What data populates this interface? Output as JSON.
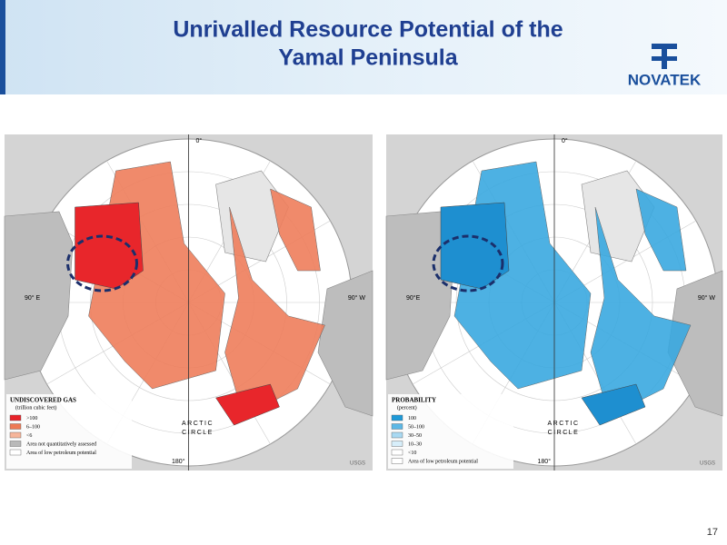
{
  "header": {
    "title": [
      "Unrivalled Resource Potential of the",
      "Yamal Peninsula"
    ],
    "logo": "NOVATEK"
  },
  "maps": [
    {
      "legend_title": "UNDISCOVERED GAS",
      "legend_unit": "(trillion cubic feet)",
      "legend_items": [
        ">100",
        "6–100",
        "<6",
        "Area not quantitatively assessed",
        "Area of low petroleum potential"
      ],
      "legend_colors": [
        "#e8232a",
        "#ee7a55",
        "#f6b59a",
        "#b9b9b9",
        "#ffffff"
      ],
      "zone_color": "#ef7e5c",
      "hot_color": "#e8262b",
      "labels": {
        "top": "0°",
        "left": "90° E",
        "right": "90° W",
        "bottom": "180°",
        "circle": [
          "ARCTIC",
          "CIRCLE"
        ],
        "source": "USGS"
      }
    },
    {
      "legend_title": "PROBABILITY",
      "legend_unit": "(percent)",
      "legend_items": [
        "100",
        "50–100",
        "30–50",
        "10–30",
        "<10",
        "Area of low petroleum potential"
      ],
      "legend_colors": [
        "#1e9ad8",
        "#5cb8e6",
        "#a9d9f2",
        "#d7eefa",
        "#ffffff",
        "#ffffff"
      ],
      "zone_color": "#3aa9e0",
      "hot_color": "#1e8fd0",
      "labels": {
        "top": "0°",
        "left": "90°E",
        "right": "90° W",
        "bottom": "180°",
        "circle": [
          "ARCTIC",
          "CIRCLE"
        ],
        "source": "USGS"
      }
    }
  ],
  "page_number": "17"
}
